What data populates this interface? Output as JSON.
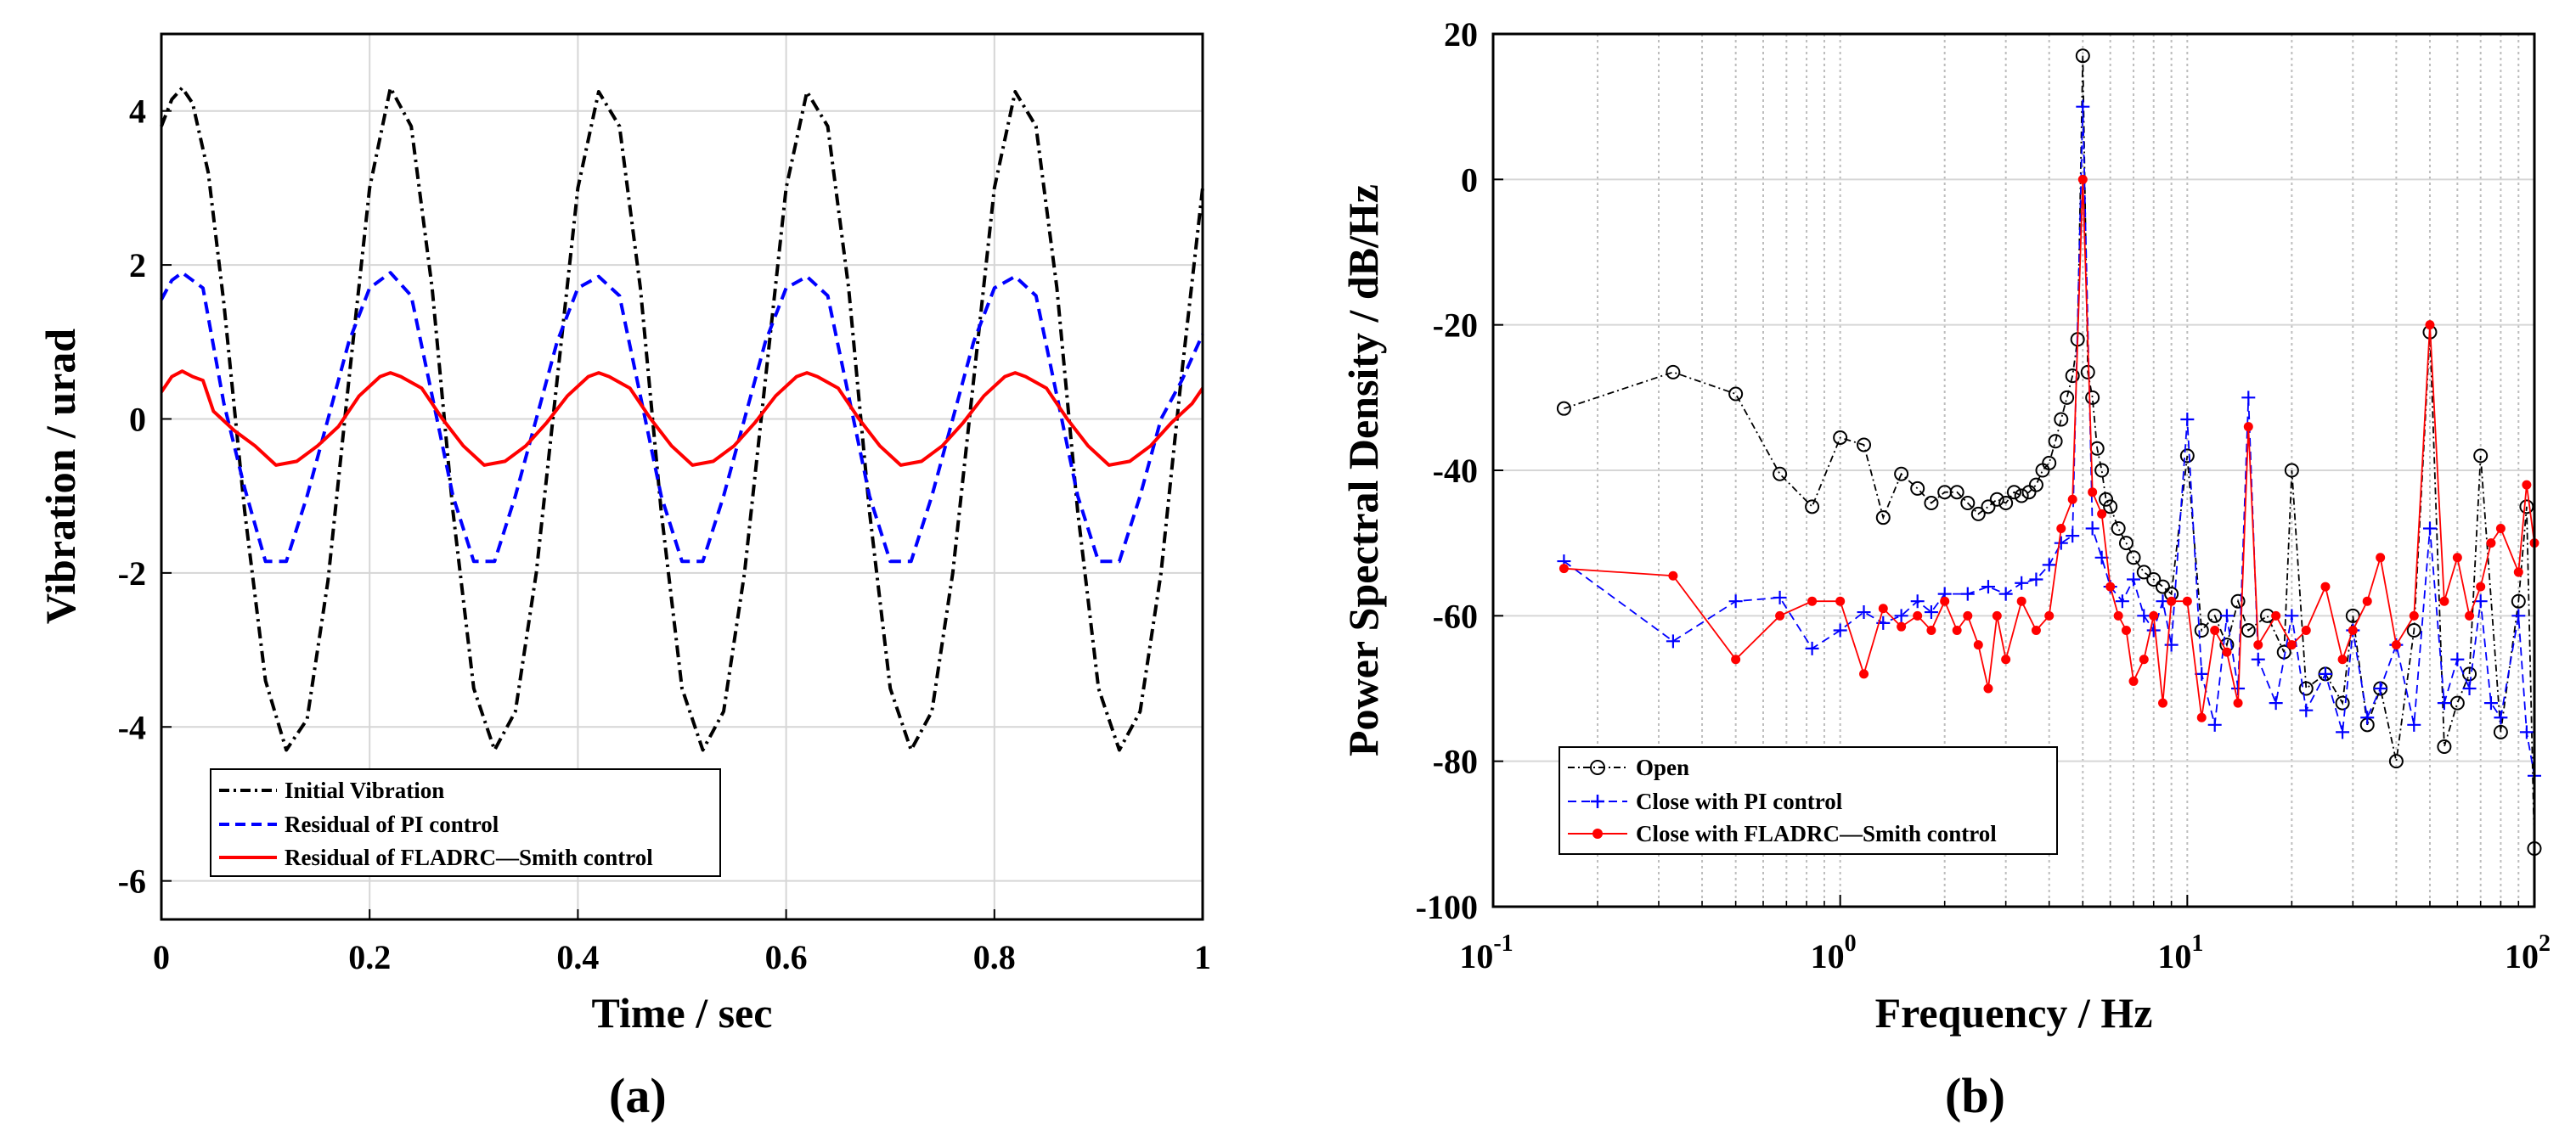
{
  "chart_data": [
    {
      "type": "line",
      "panel_label": "(a)",
      "xlabel": "Time / sec",
      "ylabel": "Vibration / urad",
      "xlim": [
        0,
        1
      ],
      "ylim": [
        -6.5,
        5
      ],
      "x_tick_labels": [
        "0",
        "0.2",
        "0.4",
        "0.6",
        "0.8",
        "1"
      ],
      "x_ticks": [
        0,
        0.2,
        0.4,
        0.6,
        0.8,
        1
      ],
      "y_tick_labels": [
        "4",
        "2",
        "0",
        "-2",
        "-4",
        "-6"
      ],
      "y_ticks": [
        4,
        2,
        0,
        -2,
        -4,
        -6
      ],
      "grid": true,
      "legend_position": "bottom-left",
      "series": [
        {
          "name": "Initial Vibration",
          "color": "#000000",
          "style": "dash-dot",
          "x": [
            0,
            0.01,
            0.02,
            0.03,
            0.045,
            0.06,
            0.08,
            0.1,
            0.12,
            0.14,
            0.16,
            0.18,
            0.2,
            0.22,
            0.24,
            0.26,
            0.28,
            0.3,
            0.32,
            0.34,
            0.36,
            0.38,
            0.4,
            0.42,
            0.44,
            0.46,
            0.48,
            0.5,
            0.52,
            0.54,
            0.56,
            0.58,
            0.6,
            0.62,
            0.64,
            0.66,
            0.68,
            0.7,
            0.72,
            0.74,
            0.76,
            0.78,
            0.8,
            0.82,
            0.84,
            0.86,
            0.88,
            0.9,
            0.92,
            0.94,
            0.96,
            0.98,
            1.0
          ],
          "y": [
            3.8,
            4.15,
            4.3,
            4.1,
            3.2,
            1.5,
            -1.2,
            -3.4,
            -4.3,
            -3.9,
            -2.1,
            0.5,
            3.0,
            4.3,
            3.8,
            1.7,
            -1.2,
            -3.5,
            -4.3,
            -3.8,
            -2.0,
            0.5,
            3.0,
            4.25,
            3.8,
            1.7,
            -1.2,
            -3.5,
            -4.3,
            -3.8,
            -2.0,
            0.5,
            3.0,
            4.25,
            3.8,
            1.7,
            -1.2,
            -3.5,
            -4.3,
            -3.8,
            -2.0,
            0.5,
            3.0,
            4.25,
            3.8,
            1.7,
            -1.2,
            -3.5,
            -4.3,
            -3.8,
            -2.0,
            0.6,
            3.0
          ]
        },
        {
          "name": "Residual of PI control",
          "color": "#0000ff",
          "style": "dashed",
          "x": [
            0,
            0.01,
            0.02,
            0.04,
            0.06,
            0.08,
            0.1,
            0.12,
            0.14,
            0.16,
            0.18,
            0.2,
            0.22,
            0.24,
            0.26,
            0.28,
            0.3,
            0.32,
            0.34,
            0.36,
            0.38,
            0.4,
            0.42,
            0.44,
            0.46,
            0.48,
            0.5,
            0.52,
            0.54,
            0.56,
            0.58,
            0.6,
            0.62,
            0.64,
            0.66,
            0.68,
            0.7,
            0.72,
            0.74,
            0.76,
            0.78,
            0.8,
            0.82,
            0.84,
            0.86,
            0.88,
            0.9,
            0.92,
            0.94,
            0.96,
            0.98,
            1.0
          ],
          "y": [
            1.55,
            1.8,
            1.9,
            1.7,
            0.2,
            -0.9,
            -1.85,
            -1.85,
            -1.0,
            0.0,
            1.0,
            1.7,
            1.9,
            1.6,
            0.3,
            -1.0,
            -1.85,
            -1.85,
            -1.0,
            0.0,
            1.0,
            1.7,
            1.85,
            1.6,
            0.3,
            -1.0,
            -1.85,
            -1.85,
            -1.0,
            0.0,
            1.0,
            1.7,
            1.85,
            1.6,
            0.3,
            -1.0,
            -1.85,
            -1.85,
            -1.0,
            0.0,
            1.0,
            1.7,
            1.85,
            1.6,
            0.3,
            -1.0,
            -1.85,
            -1.85,
            -1.0,
            0.0,
            0.5,
            1.1
          ]
        },
        {
          "name": "Residual of FLADRC—Smith control",
          "color": "#ff0000",
          "style": "solid",
          "x": [
            0,
            0.01,
            0.02,
            0.03,
            0.04,
            0.05,
            0.07,
            0.09,
            0.11,
            0.13,
            0.15,
            0.17,
            0.19,
            0.21,
            0.22,
            0.23,
            0.25,
            0.27,
            0.29,
            0.31,
            0.33,
            0.35,
            0.37,
            0.39,
            0.41,
            0.42,
            0.43,
            0.45,
            0.47,
            0.49,
            0.51,
            0.53,
            0.55,
            0.57,
            0.59,
            0.61,
            0.62,
            0.63,
            0.65,
            0.67,
            0.69,
            0.71,
            0.73,
            0.75,
            0.77,
            0.79,
            0.81,
            0.82,
            0.83,
            0.85,
            0.87,
            0.89,
            0.91,
            0.93,
            0.95,
            0.97,
            0.99,
            1.0
          ],
          "y": [
            0.35,
            0.55,
            0.62,
            0.55,
            0.5,
            0.1,
            -0.15,
            -0.35,
            -0.6,
            -0.55,
            -0.35,
            -0.1,
            0.3,
            0.55,
            0.6,
            0.55,
            0.4,
            0.0,
            -0.35,
            -0.6,
            -0.55,
            -0.35,
            -0.05,
            0.3,
            0.55,
            0.6,
            0.55,
            0.4,
            0.0,
            -0.35,
            -0.6,
            -0.55,
            -0.35,
            -0.05,
            0.3,
            0.55,
            0.6,
            0.55,
            0.4,
            0.0,
            -0.35,
            -0.6,
            -0.55,
            -0.35,
            -0.05,
            0.3,
            0.55,
            0.6,
            0.55,
            0.4,
            0.0,
            -0.35,
            -0.6,
            -0.55,
            -0.35,
            -0.05,
            0.2,
            0.4
          ]
        }
      ]
    },
    {
      "type": "line",
      "panel_label": "(b)",
      "xlabel": "Frequency / Hz",
      "ylabel": "Power Spectral Density / dB/Hz",
      "xscale": "log",
      "xlim": [
        0.1,
        100
      ],
      "ylim": [
        -100,
        20
      ],
      "x_ticks": [
        0.1,
        1,
        10,
        100
      ],
      "x_tick_bases": [
        "10",
        "10",
        "10",
        "10"
      ],
      "x_tick_exponents": [
        "-1",
        "0",
        "1",
        "2"
      ],
      "y_tick_labels": [
        "20",
        "0",
        "-20",
        "-40",
        "-60",
        "-80",
        "-100"
      ],
      "y_ticks": [
        20,
        0,
        -20,
        -40,
        -60,
        -80,
        -100
      ],
      "grid": true,
      "legend_position": "bottom-left",
      "series": [
        {
          "name": "Open",
          "color": "#000000",
          "style": "dash-dot",
          "marker": "circle",
          "x": [
            0.16,
            0.33,
            0.5,
            0.67,
            0.83,
            1.0,
            1.17,
            1.33,
            1.5,
            1.67,
            1.83,
            2.0,
            2.17,
            2.33,
            2.5,
            2.67,
            2.83,
            3.0,
            3.17,
            3.33,
            3.5,
            3.67,
            3.83,
            4.0,
            4.17,
            4.33,
            4.5,
            4.67,
            4.83,
            5.0,
            5.17,
            5.33,
            5.5,
            5.67,
            5.83,
            6.0,
            6.33,
            6.67,
            7.0,
            7.5,
            8.0,
            8.5,
            9.0,
            10.0,
            11.0,
            12.0,
            13.0,
            14.0,
            15.0,
            17.0,
            19.0,
            20.0,
            22.0,
            25.0,
            28.0,
            30.0,
            33.0,
            36.0,
            40.0,
            45.0,
            50.0,
            55.0,
            60.0,
            65.0,
            70.0,
            80.0,
            90.0,
            95.0,
            100.0
          ],
          "y": [
            -31.5,
            -26.5,
            -29.5,
            -40.5,
            -45,
            -35.5,
            -36.5,
            -46.5,
            -40.5,
            -42.5,
            -44.5,
            -43,
            -43,
            -44.5,
            -46,
            -45,
            -44,
            -44.5,
            -43,
            -43.5,
            -43,
            -42,
            -40,
            -39,
            -36,
            -33,
            -30,
            -27,
            -22,
            17,
            -26.5,
            -30,
            -37,
            -40,
            -44,
            -45,
            -48,
            -50,
            -52,
            -54,
            -55,
            -56,
            -57,
            -38,
            -62,
            -60,
            -64,
            -58,
            -62,
            -60,
            -65,
            -40,
            -70,
            -68,
            -72,
            -60,
            -75,
            -70,
            -80,
            -62,
            -21,
            -78,
            -72,
            -68,
            -38,
            -76,
            -58,
            -45,
            -92
          ]
        },
        {
          "name": "Close with PI control",
          "color": "#0000ff",
          "style": "dashed",
          "marker": "plus",
          "x": [
            0.16,
            0.33,
            0.5,
            0.67,
            0.83,
            1.0,
            1.17,
            1.33,
            1.5,
            1.67,
            1.83,
            2.0,
            2.33,
            2.67,
            3.0,
            3.33,
            3.67,
            4.0,
            4.33,
            4.67,
            5.0,
            5.33,
            5.67,
            6.0,
            6.5,
            7.0,
            7.5,
            8.0,
            8.5,
            9.0,
            10.0,
            11.0,
            12.0,
            13.0,
            14.0,
            15.0,
            16.0,
            18.0,
            20.0,
            22.0,
            25.0,
            28.0,
            30.0,
            33.0,
            36.0,
            40.0,
            45.0,
            50.0,
            55.0,
            60.0,
            65.0,
            70.0,
            75.0,
            80.0,
            90.0,
            95.0,
            100.0
          ],
          "y": [
            -52.5,
            -63.5,
            -58,
            -57.5,
            -64.5,
            -62,
            -59.5,
            -61,
            -60,
            -58,
            -59.5,
            -57,
            -57,
            -56,
            -57,
            -55.5,
            -55,
            -53,
            -50,
            -49,
            10,
            -48,
            -52,
            -56,
            -58,
            -55,
            -60,
            -62,
            -58,
            -64,
            -33,
            -68,
            -75,
            -60,
            -70,
            -30,
            -66,
            -72,
            -60,
            -73,
            -68,
            -76,
            -62,
            -74,
            -70,
            -64,
            -75,
            -48,
            -72,
            -66,
            -70,
            -58,
            -72,
            -74,
            -60,
            -76,
            -82
          ]
        },
        {
          "name": "Close with FLADRC—Smith control",
          "color": "#ff0000",
          "style": "solid",
          "marker": "dot",
          "x": [
            0.16,
            0.33,
            0.5,
            0.67,
            0.83,
            1.0,
            1.17,
            1.33,
            1.5,
            1.67,
            1.83,
            2.0,
            2.17,
            2.33,
            2.5,
            2.67,
            2.83,
            3.0,
            3.33,
            3.67,
            4.0,
            4.33,
            4.67,
            5.0,
            5.33,
            5.67,
            6.0,
            6.33,
            6.67,
            7.0,
            7.5,
            8.0,
            8.5,
            9.0,
            10.0,
            11.0,
            12.0,
            13.0,
            14.0,
            15.0,
            16.0,
            18.0,
            20.0,
            22.0,
            25.0,
            28.0,
            30.0,
            33.0,
            36.0,
            40.0,
            45.0,
            50.0,
            55.0,
            60.0,
            65.0,
            70.0,
            75.0,
            80.0,
            90.0,
            95.0,
            100.0
          ],
          "y": [
            -53.5,
            -54.5,
            -66,
            -60,
            -58,
            -58,
            -68,
            -59,
            -61.5,
            -60,
            -62,
            -58,
            -62,
            -60,
            -64,
            -70,
            -60,
            -66,
            -58,
            -62,
            -60,
            -48,
            -44,
            0,
            -43,
            -46,
            -56,
            -60,
            -62,
            -69,
            -66,
            -60,
            -72,
            -58,
            -58,
            -74,
            -62,
            -65,
            -72,
            -34,
            -64,
            -60,
            -64,
            -62,
            -56,
            -66,
            -62,
            -58,
            -52,
            -64,
            -60,
            -20,
            -58,
            -52,
            -60,
            -56,
            -50,
            -48,
            -54,
            -42,
            -50
          ]
        }
      ]
    }
  ],
  "legend_a": [
    "Initial Vibration",
    "Residual of PI control",
    "Residual of FLADRC—Smith control"
  ],
  "legend_b": [
    "Open",
    "Close with PI control",
    "Close with FLADRC—Smith control"
  ]
}
